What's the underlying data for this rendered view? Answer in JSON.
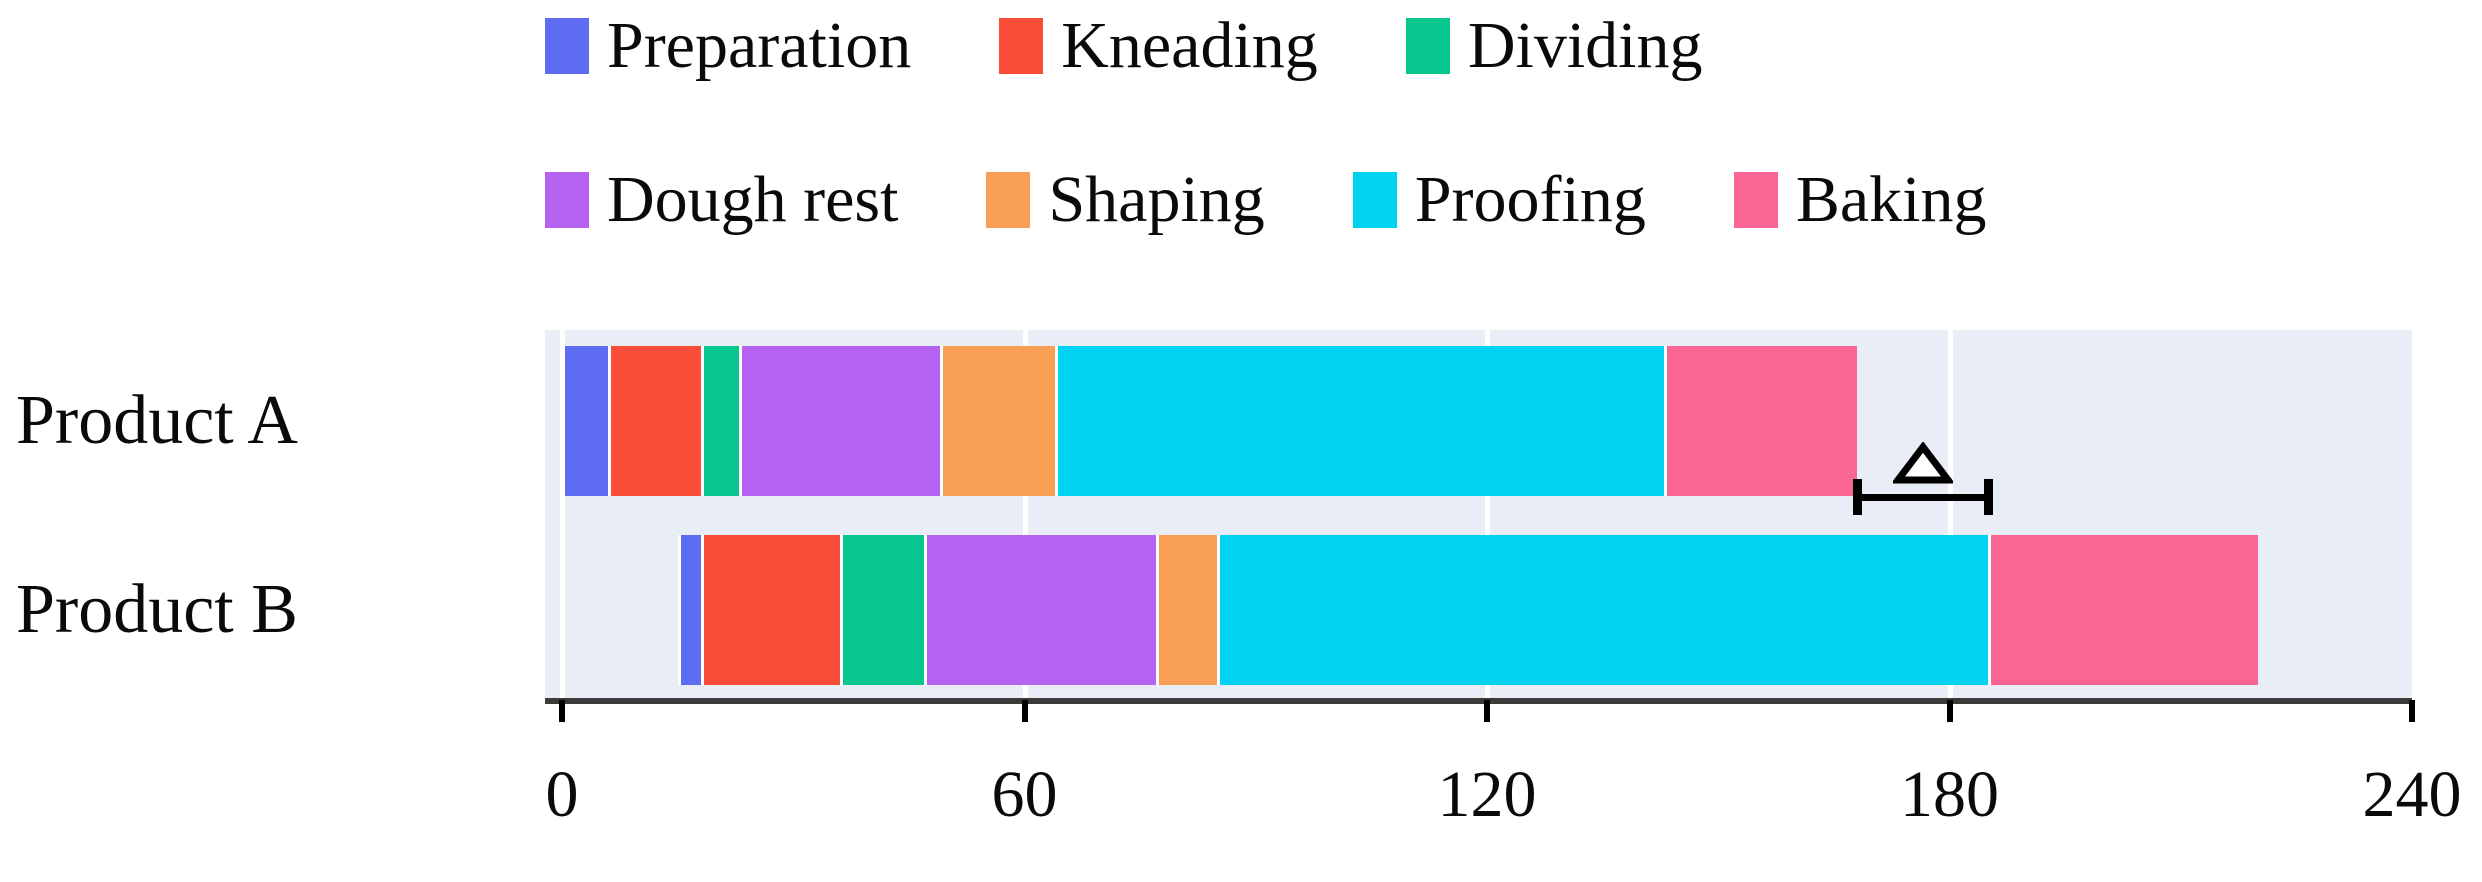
{
  "chart_data": {
    "type": "bar",
    "orientation": "horizontal",
    "stacked": true,
    "title": "",
    "xlabel": "",
    "ylabel": "",
    "x_axis": {
      "min": 0,
      "max": 240,
      "ticks": [
        0,
        60,
        120,
        180,
        240
      ],
      "gridlines": [
        0,
        60,
        120,
        180
      ]
    },
    "stages": [
      {
        "name": "Preparation",
        "color": "#5E6CF2"
      },
      {
        "name": "Kneading",
        "color": "#F94D39"
      },
      {
        "name": "Dividing",
        "color": "#07C78F"
      },
      {
        "name": "Dough rest",
        "color": "#B763F2"
      },
      {
        "name": "Shaping",
        "color": "#F99E55"
      },
      {
        "name": "Proofing",
        "color": "#00D2F2"
      },
      {
        "name": "Baking",
        "color": "#FA6694"
      }
    ],
    "legend_rows": [
      [
        "Preparation",
        "Kneading",
        "Dividing"
      ],
      [
        "Dough rest",
        "Shaping",
        "Proofing",
        "Baking"
      ]
    ],
    "rows": [
      {
        "label": "Product A",
        "start": 0,
        "end": 168,
        "segments": [
          {
            "stage": "Preparation",
            "duration": 6
          },
          {
            "stage": "Kneading",
            "duration": 12
          },
          {
            "stage": "Dividing",
            "duration": 5
          },
          {
            "stage": "Dough rest",
            "duration": 26
          },
          {
            "stage": "Shaping",
            "duration": 15
          },
          {
            "stage": "Proofing",
            "duration": 79
          },
          {
            "stage": "Baking",
            "duration": 25
          }
        ]
      },
      {
        "label": "Product B",
        "start": 15,
        "end": 220,
        "segments": [
          {
            "stage": "Preparation",
            "duration": 3
          },
          {
            "stage": "Kneading",
            "duration": 18
          },
          {
            "stage": "Dividing",
            "duration": 11
          },
          {
            "stage": "Dough rest",
            "duration": 30
          },
          {
            "stage": "Shaping",
            "duration": 8
          },
          {
            "stage": "Proofing",
            "duration": 100
          },
          {
            "stage": "Baking",
            "duration": 35
          }
        ]
      }
    ],
    "annotation": {
      "symbol": "Δ",
      "from_value": 168,
      "to_value": 185
    },
    "colors": {
      "plot_background": "#E8EDF6",
      "gridline": "#FFFFFF",
      "axis_line": "#3B3B3B",
      "text": "#0A0A0A"
    }
  }
}
